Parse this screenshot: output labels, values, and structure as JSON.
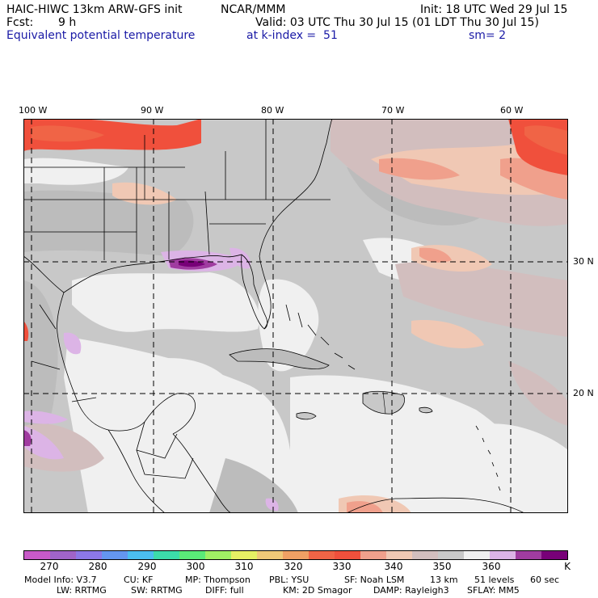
{
  "header": {
    "model": "HAIC-HIWC 13km ARW-GFS init",
    "org": "NCAR/MMM",
    "init": "Init: 18 UTC Wed 29 Jul 15",
    "fcst_label": "Fcst:",
    "fcst_value": "9 h",
    "valid": "Valid: 03 UTC Thu 30 Jul 15 (01 LDT Thu 30 Jul 15)",
    "field": "Equivalent potential temperature",
    "level": "at k-index =  51",
    "smooth": "sm= 2"
  },
  "map": {
    "lon_labels": [
      "100 W",
      "90 W",
      "80 W",
      "70 W",
      "60 W"
    ],
    "lat_labels": [
      "30 N",
      "20 N"
    ]
  },
  "colorbar": {
    "colors": [
      "#c85ac8",
      "#a064c8",
      "#8c78e6",
      "#6496f0",
      "#4bbef0",
      "#3cdcaa",
      "#5aeb78",
      "#a0f064",
      "#e6f064",
      "#f0c878",
      "#f0a064",
      "#f06446",
      "#f0503c",
      "#f0a08c",
      "#f0c8b4",
      "#d2bebe",
      "#c8c8c8",
      "#f0f0f0",
      "#dcb4e6",
      "#a03ca0",
      "#780078"
    ],
    "labels": [
      "270",
      "280",
      "290",
      "300",
      "310",
      "320",
      "330",
      "340",
      "350",
      "360"
    ],
    "units": "K"
  },
  "footer": {
    "row1": [
      "Model Info: V3.7",
      "CU: KF",
      "MP: Thompson",
      "PBL: YSU",
      "SF: Noah LSM",
      "13 km",
      "51 levels",
      "60 sec"
    ],
    "row2": [
      "LW: RRTMG",
      "SW: RRTMG",
      "DIFF: full",
      "KM: 2D Smagor",
      "DAMP: Rayleigh3",
      "SFLAY: MM5"
    ]
  }
}
